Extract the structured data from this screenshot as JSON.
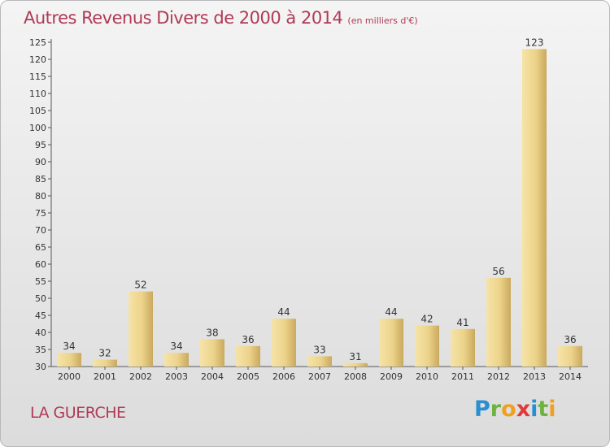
{
  "header": {
    "title": "Autres Revenus Divers de 2000 à 2014",
    "unit": "(en milliers d'€)"
  },
  "footer": {
    "commune": "LA GUERCHE",
    "logo": "Proxiti"
  },
  "colors": {
    "title": "#b03a56",
    "bar_light": "#f3dc9a",
    "bar_dark": "#c8a85c"
  },
  "chart_data": {
    "type": "bar",
    "title": "Autres Revenus Divers de 2000 à 2014",
    "subtitle": "(en milliers d'€)",
    "xlabel": "",
    "ylabel": "",
    "categories": [
      "2000",
      "2001",
      "2002",
      "2003",
      "2004",
      "2005",
      "2006",
      "2007",
      "2008",
      "2009",
      "2010",
      "2011",
      "2012",
      "2013",
      "2014"
    ],
    "values": [
      34,
      32,
      52,
      34,
      38,
      36,
      44,
      33,
      31,
      44,
      42,
      41,
      56,
      123,
      36
    ],
    "ylim": [
      30,
      125
    ],
    "yticks": [
      30,
      35,
      40,
      45,
      50,
      55,
      60,
      65,
      70,
      75,
      80,
      85,
      90,
      95,
      100,
      105,
      110,
      115,
      120,
      125
    ],
    "grid": false,
    "legend": "none",
    "data_labels": true
  }
}
